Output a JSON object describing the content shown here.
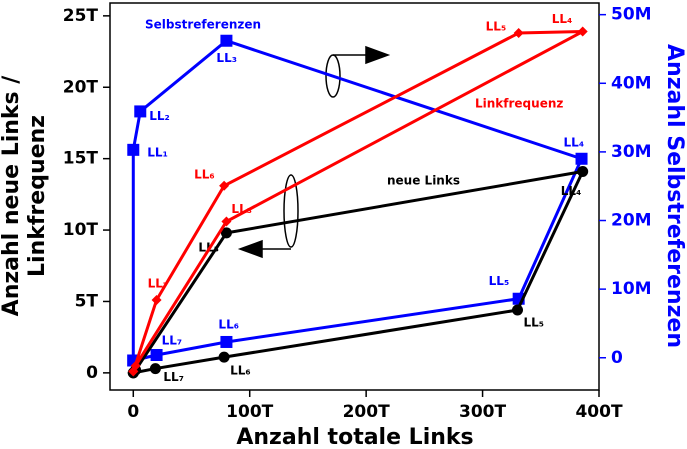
{
  "chart_data": {
    "type": "line",
    "xlabel": "Anzahl totale Links",
    "ylabel": [
      "Anzahl neue Links /",
      "Linkfrequenz"
    ],
    "y2label": "Anzahl Selbstreferenzen",
    "xlim": [
      -20,
      400
    ],
    "ylim": [
      -1.2,
      25.9
    ],
    "y2lim": [
      -4.7,
      51.7
    ],
    "xticks": [
      0,
      {
        "value": 100,
        "label": "100T"
      },
      {
        "value": 200,
        "label": "200T"
      },
      {
        "value": 300,
        "label": "300T"
      },
      {
        "value": 400,
        "label": "400T"
      }
    ],
    "yticks": [
      0,
      {
        "value": 5,
        "label": "5T"
      },
      {
        "value": 10,
        "label": "10T"
      },
      {
        "value": 15,
        "label": "15T"
      },
      {
        "value": 20,
        "label": "20T"
      },
      {
        "value": 25,
        "label": "25T"
      }
    ],
    "y2ticks": [
      0,
      {
        "value": 10,
        "label": "10M"
      },
      {
        "value": 20,
        "label": "20M"
      },
      {
        "value": 30,
        "label": "30M"
      },
      {
        "value": 40,
        "label": "40M"
      },
      {
        "value": 50,
        "label": "50M"
      }
    ],
    "series": [
      {
        "name": "Selbstreferenzen",
        "color": "#0000ff",
        "marker": "square",
        "axis": "y2",
        "x": [
          0,
          0,
          6,
          80,
          385,
          331,
          80,
          20,
          0
        ],
        "values": [
          -0.4,
          30.3,
          35.9,
          46.2,
          29.0,
          8.6,
          2.3,
          0.4,
          -0.4
        ],
        "point_labels": [
          null,
          "LL₁",
          "LL₂",
          "LL₃",
          "LL₄",
          "LL₅",
          "LL₆",
          "LL₇",
          null
        ]
      },
      {
        "name": "neue Links",
        "color": "#000000",
        "marker": "circle",
        "x": [
          0,
          2,
          80,
          386,
          330,
          78,
          19,
          0
        ],
        "values": [
          0,
          0.2,
          9.8,
          14.1,
          4.4,
          1.1,
          0.3,
          0
        ],
        "point_labels": [
          null,
          null,
          "LL₃",
          "LL₄",
          "LL₅",
          "LL₆",
          "LL₇",
          null
        ]
      },
      {
        "name": "Linkfrequenz",
        "color": "#ff0000",
        "marker": "diamond",
        "x": [
          0,
          2,
          80,
          386,
          331,
          78,
          20,
          0
        ],
        "values": [
          0.1,
          0.5,
          10.6,
          23.9,
          23.8,
          13.1,
          5.1,
          0.1
        ],
        "point_labels": [
          null,
          null,
          "LL₃",
          "LL₄",
          "LL₅",
          "LL₆",
          "LL₇",
          null
        ]
      }
    ]
  }
}
